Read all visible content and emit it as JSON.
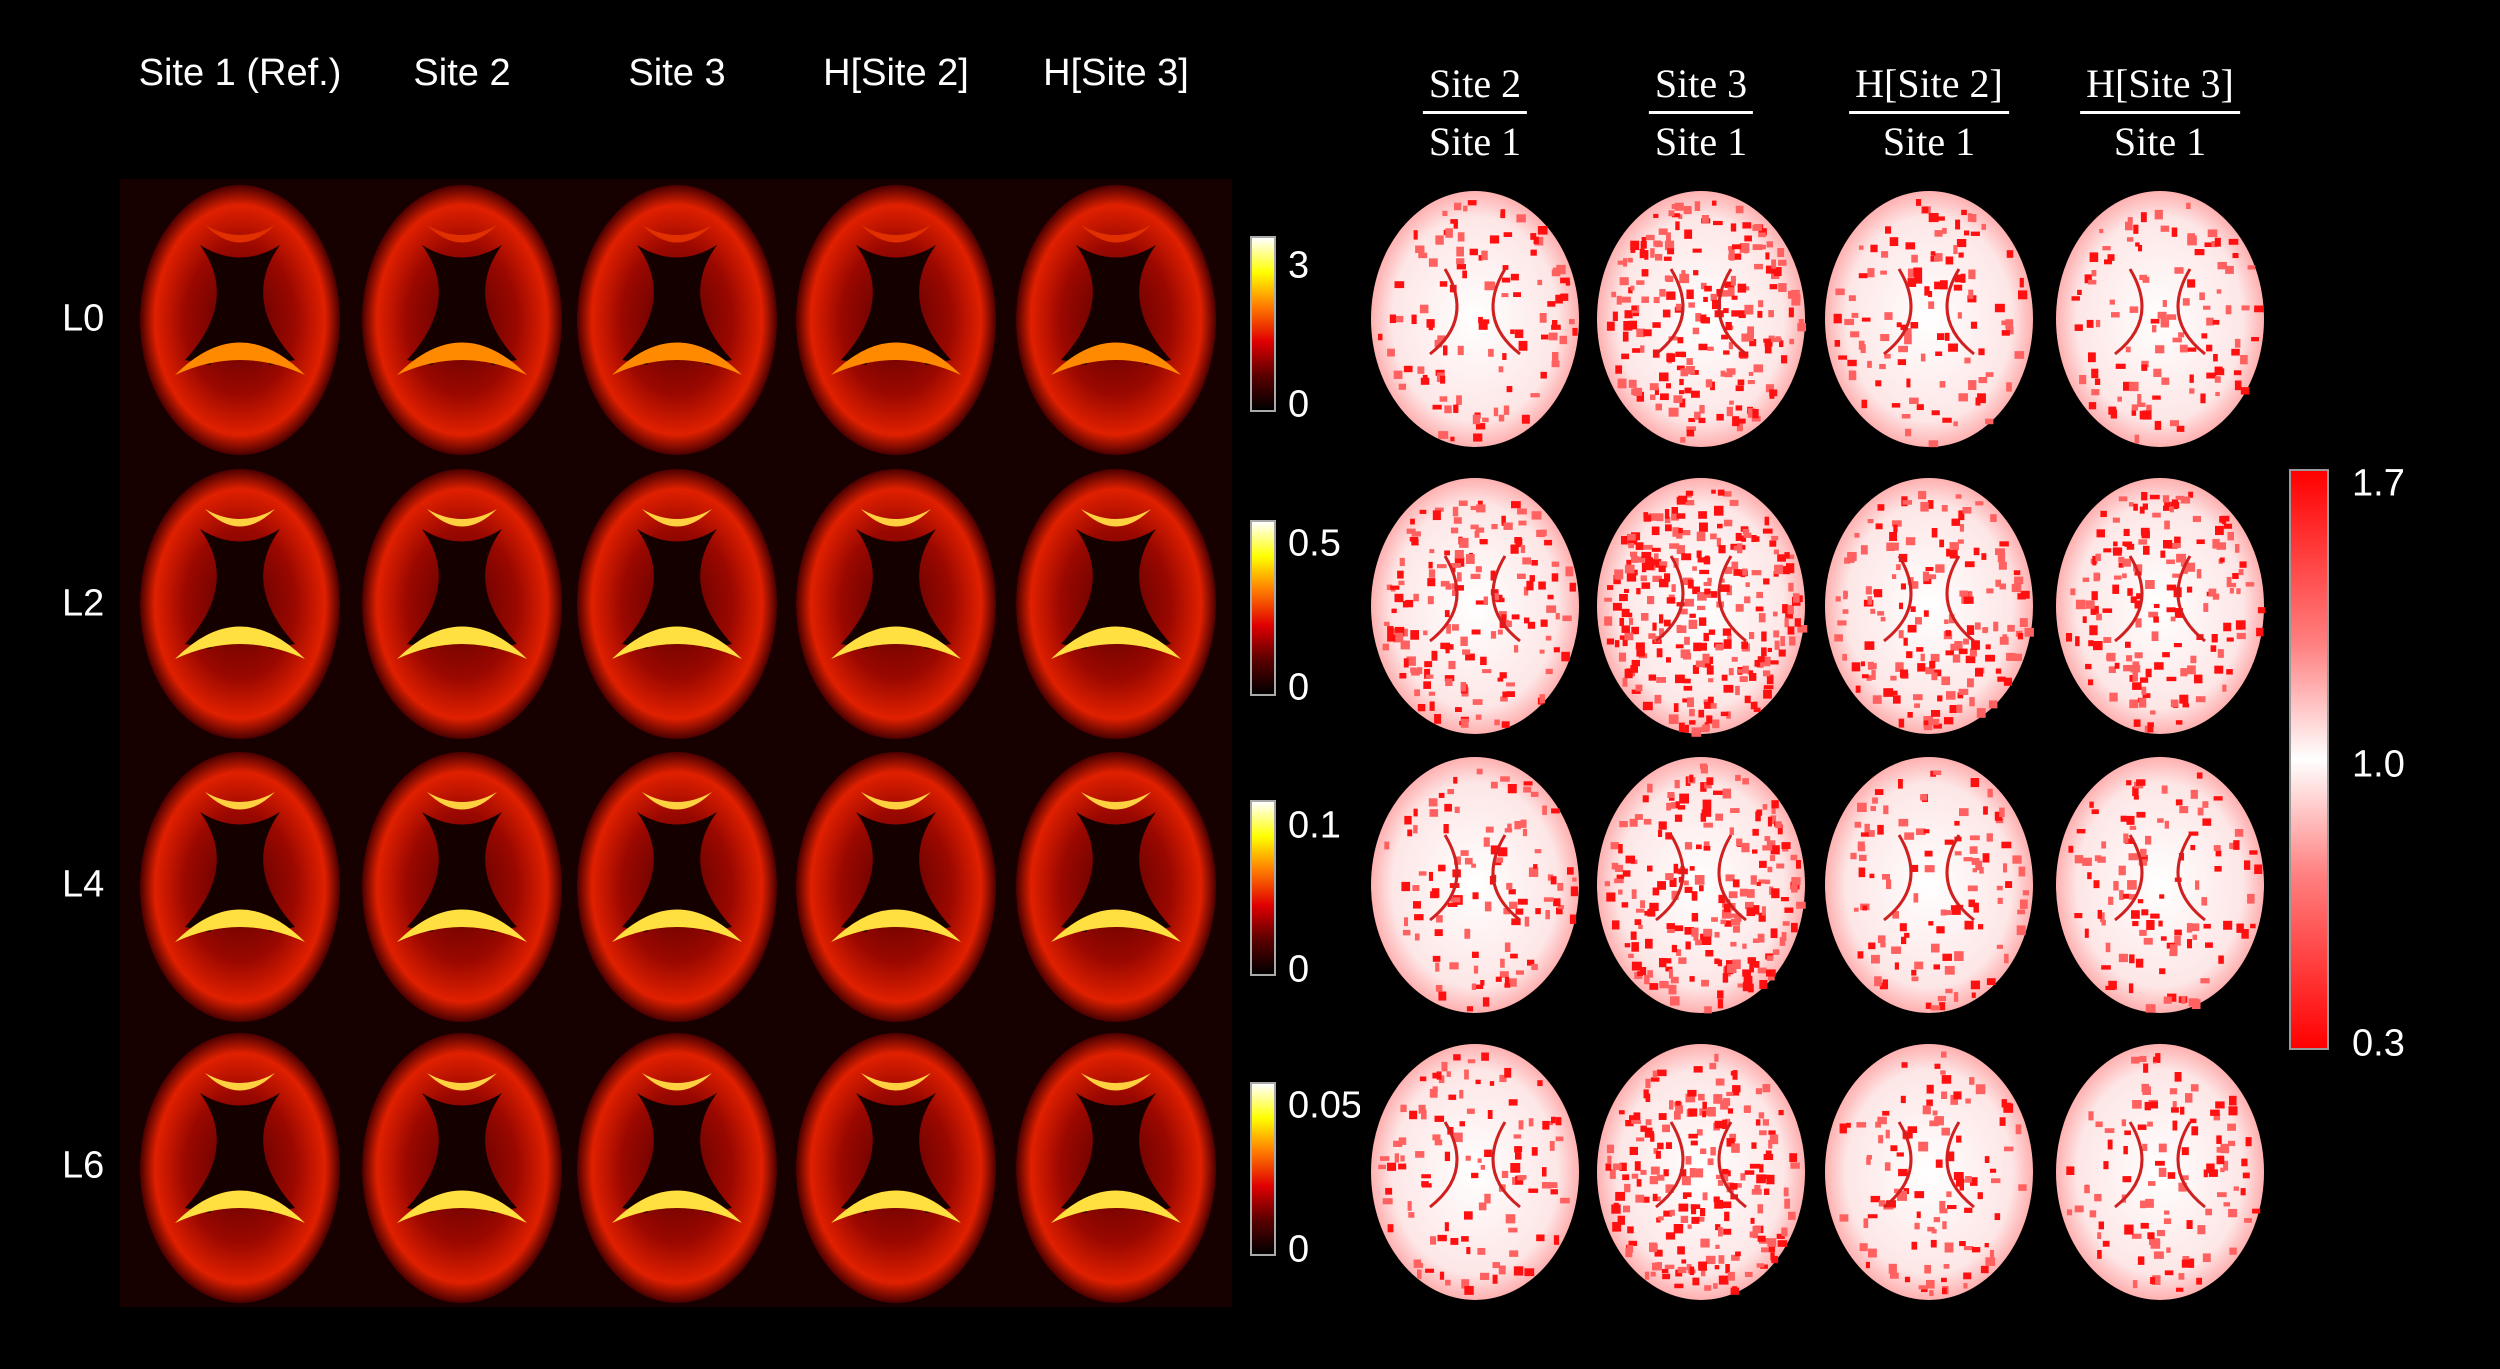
{
  "columns": [
    "Site 1 (Ref.)",
    "Site 2",
    "Site 3",
    "H[Site 2]",
    "H[Site 3]"
  ],
  "rows": [
    "L0",
    "L2",
    "L4",
    "L6"
  ],
  "row_colorbars": [
    {
      "max": "3",
      "min": "0"
    },
    {
      "max": "0.5",
      "min": "0"
    },
    {
      "max": "0.1",
      "min": "0"
    },
    {
      "max": "0.05",
      "min": "0"
    }
  ],
  "ratio_columns": [
    {
      "numerator": "Site 2",
      "denominator": "Site 1"
    },
    {
      "numerator": "Site 3",
      "denominator": "Site 1"
    },
    {
      "numerator": "H[Site 2]",
      "denominator": "Site 1"
    },
    {
      "numerator": "H[Site 3]",
      "denominator": "Site 1"
    }
  ],
  "ratio_colorbar": {
    "max": "1.7",
    "mid": "1.0",
    "min": "0.3"
  },
  "colors": {
    "background": "#000000",
    "hot_map": [
      "#000000",
      "#e00000",
      "#ffff00",
      "#ffffff"
    ],
    "ratio_map": [
      "#ff0000",
      "#ffffff",
      "#ff0000"
    ]
  }
}
